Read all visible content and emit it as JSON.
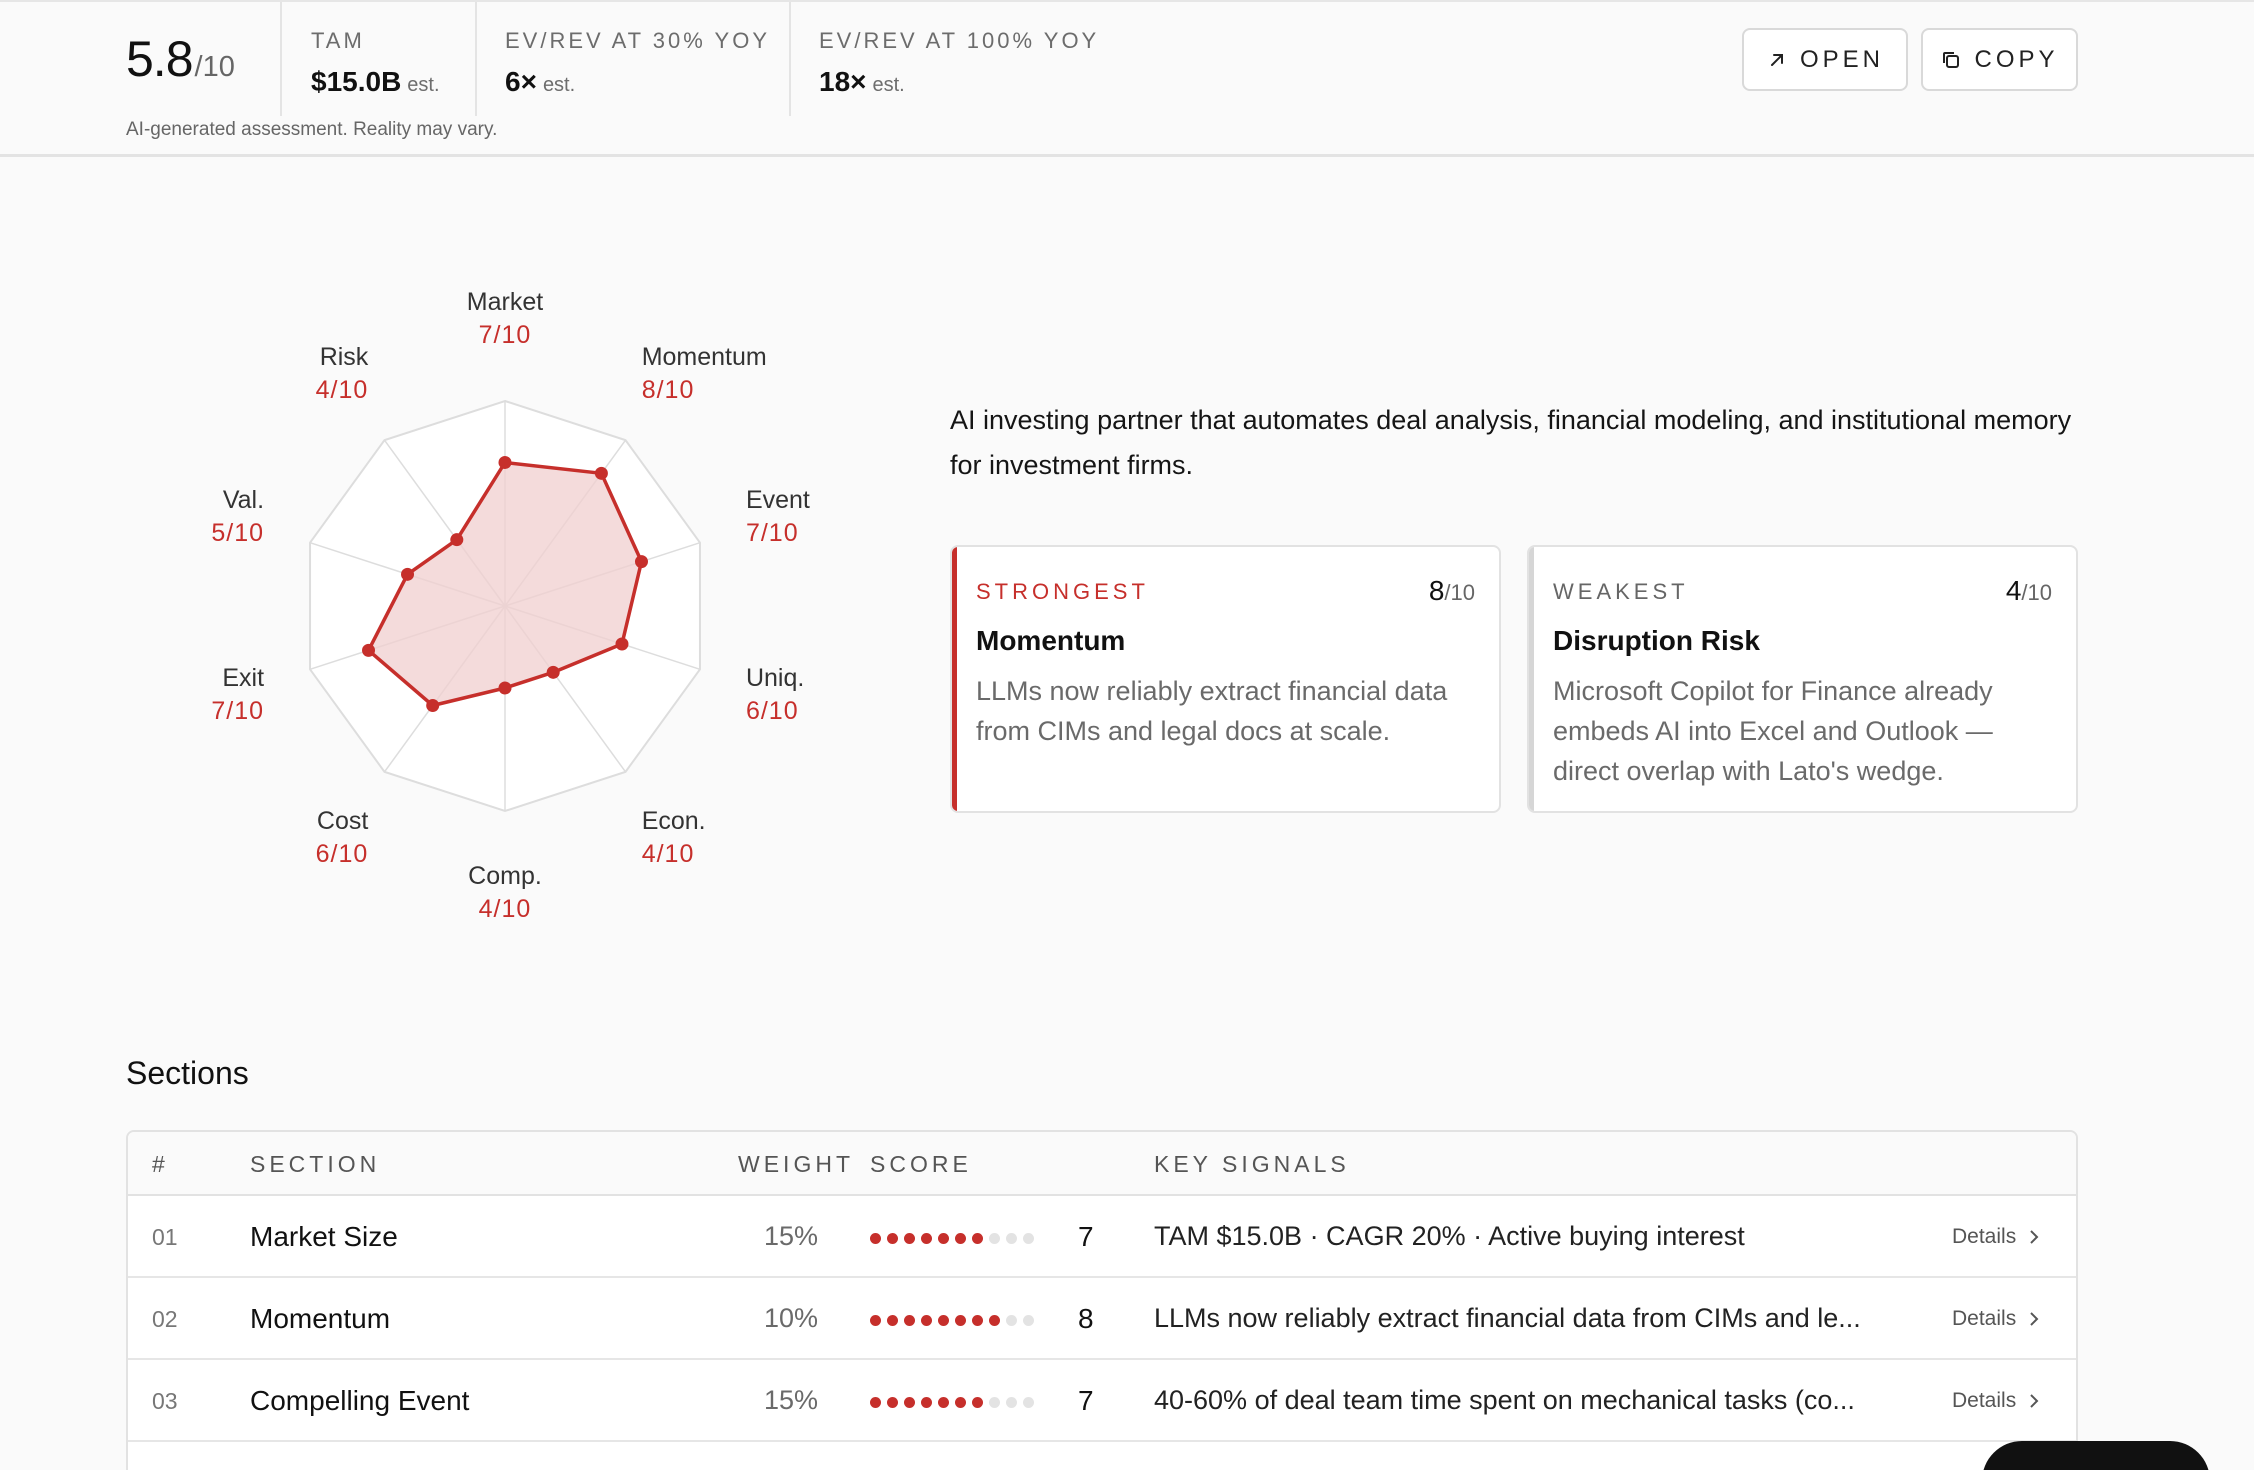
{
  "header": {
    "score": "5.8",
    "score_denom": "/10",
    "metrics": [
      {
        "label": "TAM",
        "value": "$15.0B",
        "suffix": "est."
      },
      {
        "label": "EV/REV AT 30% YOY",
        "value": "6×",
        "suffix": "est."
      },
      {
        "label": "EV/REV AT 100% YOY",
        "value": "18×",
        "suffix": "est."
      }
    ],
    "disclaimer": "AI-generated assessment. Reality may vary.",
    "open_label": "OPEN",
    "copy_label": "COPY"
  },
  "radar": {
    "max": 10,
    "axes": [
      {
        "name": "Market",
        "score": 7,
        "score_text": "7/10"
      },
      {
        "name": "Momentum",
        "score": 8,
        "score_text": "8/10"
      },
      {
        "name": "Event",
        "score": 7,
        "score_text": "7/10"
      },
      {
        "name": "Uniq.",
        "score": 6,
        "score_text": "6/10"
      },
      {
        "name": "Econ.",
        "score": 4,
        "score_text": "4/10"
      },
      {
        "name": "Comp.",
        "score": 4,
        "score_text": "4/10"
      },
      {
        "name": "Cost",
        "score": 6,
        "score_text": "6/10"
      },
      {
        "name": "Exit",
        "score": 7,
        "score_text": "7/10"
      },
      {
        "name": "Val.",
        "score": 5,
        "score_text": "5/10"
      },
      {
        "name": "Risk",
        "score": 4,
        "score_text": "4/10"
      }
    ],
    "colors": {
      "accent": "#c62f2b",
      "fill": "#f0cfcf",
      "grid": "#dddddd"
    }
  },
  "description": "AI investing partner that automates deal analysis, financial modeling, and institutional memory for investment firms.",
  "strongest": {
    "kicker": "STRONGEST",
    "score": "8",
    "denom": "/10",
    "title": "Momentum",
    "body": "LLMs now reliably extract financial data from CIMs and legal docs at scale."
  },
  "weakest": {
    "kicker": "WEAKEST",
    "score": "4",
    "denom": "/10",
    "title": "Disruption Risk",
    "body": "Microsoft Copilot for Finance already embeds AI into Excel and Outlook — direct overlap with Lato's wedge."
  },
  "sections": {
    "title": "Sections",
    "columns": {
      "num": "#",
      "section": "SECTION",
      "weight": "WEIGHT",
      "score": "SCORE",
      "signals": "KEY SIGNALS"
    },
    "details_label": "Details",
    "rows": [
      {
        "num": "01",
        "section": "Market Size",
        "weight": "15%",
        "score": 7,
        "score_text": "7",
        "signals": "TAM $15.0B · CAGR 20% · Active buying interest"
      },
      {
        "num": "02",
        "section": "Momentum",
        "weight": "10%",
        "score": 8,
        "score_text": "8",
        "signals": "LLMs now reliably extract financial data from CIMs and le..."
      },
      {
        "num": "03",
        "section": "Compelling Event",
        "weight": "15%",
        "score": 7,
        "score_text": "7",
        "signals": "40-60% of deal team time spent on mechanical tasks (co..."
      }
    ]
  }
}
